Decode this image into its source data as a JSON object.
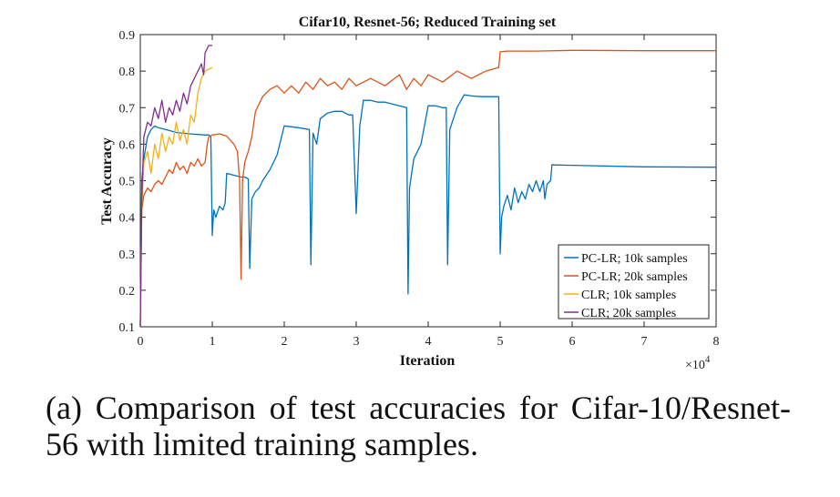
{
  "chart_data": {
    "type": "line",
    "title": "Cifar10, Resnet-56; Reduced Training set",
    "xlabel": "Iteration",
    "ylabel": "Test Accuracy",
    "x_multiplier": "×10",
    "x_multiplier_exp": "4",
    "xlim": [
      0,
      8
    ],
    "ylim": [
      0.1,
      0.9
    ],
    "xticks": [
      0,
      1,
      2,
      3,
      4,
      5,
      6,
      7,
      8
    ],
    "xtick_labels": [
      "0",
      "1",
      "2",
      "3",
      "4",
      "5",
      "6",
      "7",
      "8"
    ],
    "yticks": [
      0.1,
      0.2,
      0.3,
      0.4,
      0.5,
      0.6,
      0.7,
      0.8,
      0.9
    ],
    "ytick_labels": [
      "0.1",
      "0.2",
      "0.3",
      "0.4",
      "0.5",
      "0.6",
      "0.7",
      "0.8",
      "0.9"
    ],
    "legend_position": "bottom-right",
    "series": [
      {
        "name": "PC-LR; 10k samples",
        "color": "#0072BD",
        "x": [
          0,
          0.02,
          0.05,
          0.1,
          0.15,
          0.2,
          0.25,
          0.35,
          0.5,
          0.7,
          0.9,
          0.95,
          0.98,
          1.0,
          1.02,
          1.05,
          1.1,
          1.15,
          1.18,
          1.2,
          1.3,
          1.4,
          1.45,
          1.5,
          1.52,
          1.55,
          1.6,
          1.65,
          1.7,
          1.8,
          1.9,
          2.0,
          2.2,
          2.35,
          2.37,
          2.4,
          2.45,
          2.5,
          2.6,
          2.7,
          2.8,
          2.9,
          2.95,
          3.0,
          3.05,
          3.1,
          3.2,
          3.3,
          3.4,
          3.6,
          3.7,
          3.72,
          3.74,
          3.8,
          3.9,
          4.0,
          4.1,
          4.2,
          4.25,
          4.27,
          4.3,
          4.4,
          4.5,
          4.6,
          4.75,
          4.98,
          5.0,
          5.02,
          5.05,
          5.1,
          5.15,
          5.2,
          5.25,
          5.3,
          5.35,
          5.4,
          5.45,
          5.5,
          5.55,
          5.6,
          5.62,
          5.65,
          5.7,
          5.72,
          5.74,
          6.0,
          7.0,
          8.0
        ],
        "y": [
          0.1,
          0.5,
          0.56,
          0.62,
          0.64,
          0.65,
          0.645,
          0.64,
          0.632,
          0.628,
          0.625,
          0.625,
          0.62,
          0.35,
          0.42,
          0.4,
          0.43,
          0.42,
          0.44,
          0.52,
          0.515,
          0.51,
          0.51,
          0.505,
          0.26,
          0.45,
          0.47,
          0.48,
          0.5,
          0.53,
          0.57,
          0.65,
          0.645,
          0.64,
          0.27,
          0.63,
          0.6,
          0.67,
          0.685,
          0.69,
          0.69,
          0.68,
          0.68,
          0.41,
          0.65,
          0.72,
          0.72,
          0.715,
          0.715,
          0.705,
          0.7,
          0.19,
          0.48,
          0.56,
          0.6,
          0.705,
          0.705,
          0.7,
          0.7,
          0.27,
          0.64,
          0.7,
          0.735,
          0.732,
          0.73,
          0.73,
          0.3,
          0.4,
          0.43,
          0.46,
          0.42,
          0.48,
          0.44,
          0.47,
          0.45,
          0.49,
          0.47,
          0.5,
          0.47,
          0.5,
          0.45,
          0.49,
          0.5,
          0.544,
          0.543,
          0.542,
          0.538,
          0.537
        ]
      },
      {
        "name": "PC-LR; 20k samples",
        "color": "#D95319",
        "x": [
          0,
          0.02,
          0.05,
          0.1,
          0.15,
          0.2,
          0.25,
          0.3,
          0.35,
          0.4,
          0.45,
          0.5,
          0.55,
          0.6,
          0.65,
          0.7,
          0.75,
          0.8,
          0.85,
          0.9,
          0.93,
          0.95,
          1.0,
          1.1,
          1.2,
          1.3,
          1.35,
          1.38,
          1.4,
          1.42,
          1.45,
          1.5,
          1.55,
          1.6,
          1.7,
          1.8,
          1.9,
          2.0,
          2.1,
          2.2,
          2.3,
          2.4,
          2.5,
          2.6,
          2.7,
          2.8,
          2.9,
          3.0,
          3.2,
          3.4,
          3.6,
          3.7,
          3.8,
          3.9,
          4.0,
          4.2,
          4.4,
          4.6,
          4.8,
          4.98,
          5.0,
          5.1,
          5.5,
          6.0,
          7.0,
          8.0
        ],
        "y": [
          0.1,
          0.42,
          0.46,
          0.48,
          0.47,
          0.49,
          0.5,
          0.49,
          0.51,
          0.53,
          0.52,
          0.55,
          0.53,
          0.54,
          0.52,
          0.55,
          0.54,
          0.56,
          0.54,
          0.55,
          0.6,
          0.62,
          0.625,
          0.628,
          0.622,
          0.6,
          0.58,
          0.5,
          0.23,
          0.5,
          0.55,
          0.58,
          0.62,
          0.69,
          0.73,
          0.75,
          0.76,
          0.74,
          0.76,
          0.74,
          0.77,
          0.75,
          0.78,
          0.76,
          0.77,
          0.75,
          0.78,
          0.76,
          0.78,
          0.76,
          0.79,
          0.75,
          0.78,
          0.76,
          0.79,
          0.77,
          0.8,
          0.78,
          0.8,
          0.81,
          0.853,
          0.855,
          0.855,
          0.857,
          0.856,
          0.856
        ]
      },
      {
        "name": "CLR; 10k samples",
        "color": "#EDB120",
        "x": [
          0,
          0.02,
          0.05,
          0.1,
          0.15,
          0.2,
          0.25,
          0.3,
          0.35,
          0.4,
          0.45,
          0.5,
          0.55,
          0.6,
          0.65,
          0.7,
          0.75,
          0.8,
          0.85,
          0.9,
          0.95,
          1.0
        ],
        "y": [
          0.1,
          0.42,
          0.55,
          0.58,
          0.52,
          0.6,
          0.56,
          0.63,
          0.58,
          0.62,
          0.6,
          0.66,
          0.61,
          0.64,
          0.6,
          0.68,
          0.66,
          0.74,
          0.78,
          0.8,
          0.805,
          0.81
        ]
      },
      {
        "name": "CLR; 20k samples",
        "color": "#7E2F8E",
        "x": [
          0,
          0.02,
          0.05,
          0.1,
          0.15,
          0.2,
          0.25,
          0.3,
          0.35,
          0.4,
          0.45,
          0.5,
          0.55,
          0.6,
          0.65,
          0.7,
          0.75,
          0.8,
          0.85,
          0.88,
          0.9,
          0.95,
          1.0
        ],
        "y": [
          0.1,
          0.45,
          0.62,
          0.66,
          0.65,
          0.7,
          0.67,
          0.72,
          0.66,
          0.7,
          0.68,
          0.72,
          0.69,
          0.74,
          0.71,
          0.76,
          0.78,
          0.8,
          0.82,
          0.79,
          0.85,
          0.87,
          0.87
        ]
      }
    ]
  },
  "caption": "(a) Comparison of test accuracies for Cifar-10/Resnet-56 with limited training samples."
}
